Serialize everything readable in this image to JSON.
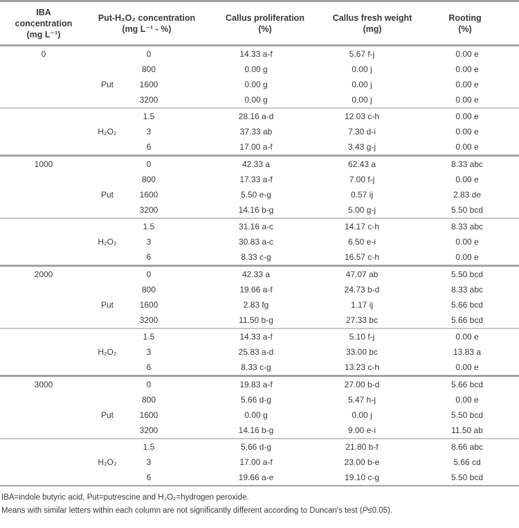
{
  "table": {
    "columns": [
      {
        "lines": [
          "IBA",
          "concentration",
          "(mg L⁻¹)"
        ]
      },
      {
        "lines": [
          "Put-H₂O₂ concentration",
          "(mg L⁻¹ - %)"
        ]
      },
      {
        "lines": [
          "Callus proliferation",
          "(%)"
        ]
      },
      {
        "lines": [
          "Callus fresh weight",
          "(mg)"
        ]
      },
      {
        "lines": [
          "Rooting",
          "(%)"
        ]
      }
    ],
    "groups": [
      {
        "iba": "0",
        "put": {
          "label": "Put",
          "rows": [
            [
              "0",
              "14.33 a-f",
              "5.67 f-j",
              "0.00 e"
            ],
            [
              "800",
              "0.00 g",
              "0.00 j",
              "0.00 e"
            ],
            [
              "1600",
              "0.00 g",
              "0.00 j",
              "0.00 e"
            ],
            [
              "3200",
              "0.00 g",
              "0.00 j",
              "0.00 e"
            ]
          ]
        },
        "h2o2": {
          "label": "H₂O₂",
          "rows": [
            [
              "1.5",
              "28.16 a-d",
              "12.03 c-h",
              "0.00 e"
            ],
            [
              "3",
              "37.33 ab",
              "7.30 d-i",
              "0.00 e"
            ],
            [
              "6",
              "17.00 a-f",
              "3.43 g-j",
              "0.00 e"
            ]
          ]
        }
      },
      {
        "iba": "1000",
        "put": {
          "label": "Put",
          "rows": [
            [
              "0",
              "42.33 a",
              "62.43 a",
              "8.33 abc"
            ],
            [
              "800",
              "17.33 a-f",
              "7.00 f-j",
              "0.00 e"
            ],
            [
              "1600",
              "5.50 e-g",
              "0.57 ij",
              "2.83 de"
            ],
            [
              "3200",
              "14.16 b-g",
              "5.00 g-j",
              "5.50 bcd"
            ]
          ]
        },
        "h2o2": {
          "label": "H₂O₂",
          "rows": [
            [
              "1.5",
              "31.16 a-c",
              "14.17 c-h",
              "8.33 abc"
            ],
            [
              "3",
              "30.83 a-c",
              "6.50 e-i",
              "0.00 e"
            ],
            [
              "6",
              "8.33 c-g",
              "16.57 c-h",
              "0.00 e"
            ]
          ]
        }
      },
      {
        "iba": "2000",
        "put": {
          "label": "Put",
          "rows": [
            [
              "0",
              "42.33 a",
              "47.07 ab",
              "5.50 bcd"
            ],
            [
              "800",
              "19.66 a-f",
              "24.73 b-d",
              "8.33 abc"
            ],
            [
              "1600",
              "2.83 fg",
              "1.17 ij",
              "5.66 bcd"
            ],
            [
              "3200",
              "11.50 b-g",
              "27.33 bc",
              "5.66 bcd"
            ]
          ]
        },
        "h2o2": {
          "label": "H₂O₂",
          "rows": [
            [
              "1.5",
              "14.33 a-f",
              "5.10 f-j",
              "0.00 e"
            ],
            [
              "3",
              "25.83 a-d",
              "33.00 bc",
              "13.83 a"
            ],
            [
              "6",
              "8.33 c-g",
              "13.23 c-h",
              "0.00 e"
            ]
          ]
        }
      },
      {
        "iba": "3000",
        "put": {
          "label": "Put",
          "rows": [
            [
              "0",
              "19.83 a-f",
              "27.00 b-d",
              "5.66 bcd"
            ],
            [
              "800",
              "5.66 d-g",
              "5.47 h-j",
              "0.00 e"
            ],
            [
              "1600",
              "0.00 g",
              "0.00 j",
              "5.50 bcd"
            ],
            [
              "3200",
              "14.16 b-g",
              "9.00 e-i",
              "11.50 ab"
            ]
          ]
        },
        "h2o2": {
          "label": "H₂O₂",
          "rows": [
            [
              "1.5",
              "5.66 d-g",
              "21.80 b-f",
              "8.66 abc"
            ],
            [
              "3",
              "17.00 a-f",
              "23.00 b-e",
              "5.66 cd"
            ],
            [
              "6",
              "19.66 a-e",
              "19.10 c-g",
              "5.50 bcd"
            ]
          ]
        }
      }
    ],
    "footnotes": {
      "abbreviations": "IBA=indole butyric acid, Put=putrescine and H₂O₂=hydrogen peroxide.",
      "duncan_prefix": "Means with similar letters within each column are not significantly different according to Duncan's test (",
      "duncan_p": "P",
      "duncan_suffix": "≤0.05)."
    }
  }
}
